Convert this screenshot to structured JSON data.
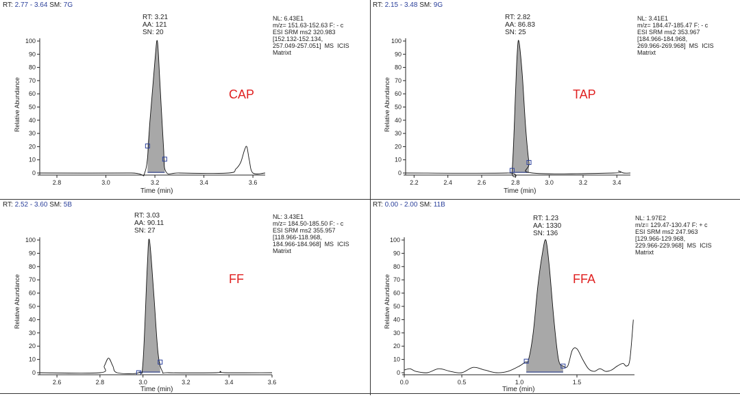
{
  "axis_label_y": "Relative Abundance",
  "axis_label_x": "Time (min)",
  "chart_data": [
    {
      "type": "line",
      "compound": "CAP",
      "header": {
        "rt_label": "RT:",
        "rt_range": "2.77 - 3.64",
        "sm_label": "SM:",
        "sm_value": "7G"
      },
      "peak": {
        "rt": "RT: 3.21",
        "aa": "AA: 121",
        "sn": "SN: 20"
      },
      "info": "NL: 6.43E1\nm/z= 151.63-152.63 F: - c\nESI SRM ms2 320.983\n[152.132-152.134,\n257.049-257.051]  MS  ICIS\nMatrixt",
      "xlim": [
        2.73,
        3.65
      ],
      "ylim": [
        0,
        100
      ],
      "xticks": [
        2.8,
        3.0,
        3.2,
        3.4,
        3.6
      ],
      "xtick_labels": [
        "2.8",
        "3.0",
        "3.2",
        "3.4",
        "3.6"
      ],
      "yticks": [
        0,
        10,
        20,
        30,
        40,
        50,
        60,
        70,
        80,
        90,
        100
      ],
      "x": [
        2.73,
        3.1,
        3.16,
        3.18,
        3.2,
        3.21,
        3.22,
        3.235,
        3.245,
        3.3,
        3.5,
        3.53,
        3.55,
        3.565,
        3.575,
        3.585,
        3.6,
        3.65
      ],
      "y": [
        0,
        0,
        1,
        40,
        85,
        100,
        70,
        20,
        1,
        0,
        0,
        3,
        8,
        17,
        20,
        10,
        0,
        0
      ],
      "shaded_range": [
        3.17,
        3.24
      ],
      "markers": [
        3.17,
        3.24
      ]
    },
    {
      "type": "line",
      "compound": "TAP",
      "header": {
        "rt_label": "RT:",
        "rt_range": "2.15 - 3.48",
        "sm_label": "SM:",
        "sm_value": "9G"
      },
      "peak": {
        "rt": "RT: 2.82",
        "aa": "AA: 86.83",
        "sn": "SN: 25"
      },
      "info": "NL: 3.41E1\nm/z= 184.47-185.47 F: - c\nESI SRM ms2 353.967\n[184.966-184.968,\n269.966-269.968]  MS  ICIS\nMatrixt",
      "xlim": [
        2.15,
        3.48
      ],
      "ylim": [
        0,
        100
      ],
      "xticks": [
        2.2,
        2.4,
        2.6,
        2.8,
        3.0,
        3.2,
        3.4
      ],
      "xtick_labels": [
        "2.2",
        "2.4",
        "2.6",
        "2.8",
        "3.0",
        "3.2",
        "3.4"
      ],
      "yticks": [
        0,
        10,
        20,
        30,
        40,
        50,
        60,
        70,
        80,
        90,
        100
      ],
      "x": [
        2.15,
        2.75,
        2.78,
        2.8,
        2.81,
        2.82,
        2.84,
        2.86,
        2.88,
        2.9,
        3.38,
        3.41,
        3.44,
        3.48
      ],
      "y": [
        0,
        0,
        2,
        60,
        90,
        100,
        75,
        35,
        8,
        0,
        0,
        1.5,
        0,
        0
      ],
      "shaded_range": [
        2.78,
        2.88
      ],
      "markers": [
        2.78,
        2.88
      ]
    },
    {
      "type": "line",
      "compound": "FF",
      "header": {
        "rt_label": "RT:",
        "rt_range": "2.52 - 3.60",
        "sm_label": "SM:",
        "sm_value": "5B"
      },
      "peak": {
        "rt": "RT: 3.03",
        "aa": "AA: 90.11",
        "sn": "SN: 27"
      },
      "info": "NL: 3.43E1\nm/z= 184.50-185.50 F: - c\nESI SRM ms2 355.957\n[118.966-118.968,\n184.966-184.968]  MS  ICIS\nMatrixt",
      "xlim": [
        2.52,
        3.6
      ],
      "ylim": [
        0,
        100
      ],
      "xticks": [
        2.6,
        2.8,
        3.0,
        3.2,
        3.4,
        3.6
      ],
      "xtick_labels": [
        "2.6",
        "2.8",
        "3.0",
        "3.2",
        "3.4",
        "3.6"
      ],
      "yticks": [
        0,
        10,
        20,
        30,
        40,
        50,
        60,
        70,
        80,
        90,
        100
      ],
      "x": [
        2.52,
        2.8,
        2.82,
        2.84,
        2.86,
        2.88,
        2.98,
        3.0,
        3.02,
        3.03,
        3.05,
        3.07,
        3.09,
        3.12,
        3.34,
        3.36,
        3.38,
        3.6
      ],
      "y": [
        0,
        0,
        5,
        11,
        5,
        0,
        0,
        8,
        80,
        100,
        60,
        15,
        1,
        0,
        0,
        1,
        0,
        0
      ],
      "shaded_range": [
        2.98,
        3.08
      ],
      "markers": [
        2.98,
        3.08
      ]
    },
    {
      "type": "line",
      "compound": "FFA",
      "header": {
        "rt_label": "RT:",
        "rt_range": "0.00 - 2.00",
        "sm_label": "SM:",
        "sm_value": "11B"
      },
      "peak": {
        "rt": "RT: 1.23",
        "aa": "AA: 1330",
        "sn": "SN: 136"
      },
      "info": "NL: 1.97E2\nm/z= 129.47-130.47 F: + c\nESI SRM ms2 247.963\n[129.966-129.968,\n229.966-229.968]  MS  ICIS\nMatrixt",
      "xlim": [
        0,
        2.0
      ],
      "ylim": [
        0,
        100
      ],
      "xticks": [
        0.0,
        0.5,
        1.0,
        1.5
      ],
      "xtick_labels": [
        "0.0",
        "0.5",
        "1.0",
        "1.5"
      ],
      "yticks": [
        0,
        10,
        20,
        30,
        40,
        50,
        60,
        70,
        80,
        90,
        100
      ],
      "x": [
        0.0,
        0.05,
        0.1,
        0.2,
        0.3,
        0.4,
        0.5,
        0.6,
        0.7,
        0.8,
        0.9,
        1.0,
        1.05,
        1.08,
        1.12,
        1.16,
        1.2,
        1.23,
        1.26,
        1.3,
        1.34,
        1.38,
        1.42,
        1.46,
        1.5,
        1.55,
        1.6,
        1.65,
        1.7,
        1.75,
        1.8,
        1.85,
        1.9,
        1.93,
        1.96,
        1.99
      ],
      "y": [
        2,
        3,
        1,
        0,
        3,
        1,
        0,
        4,
        2,
        0,
        1,
        5,
        8,
        10,
        30,
        65,
        90,
        100,
        80,
        40,
        10,
        5,
        5,
        17,
        18,
        10,
        3,
        1,
        3,
        1,
        2,
        5,
        7,
        5,
        10,
        40
      ],
      "shaded_range": [
        1.06,
        1.38
      ],
      "markers": [
        1.06,
        1.38
      ]
    }
  ]
}
